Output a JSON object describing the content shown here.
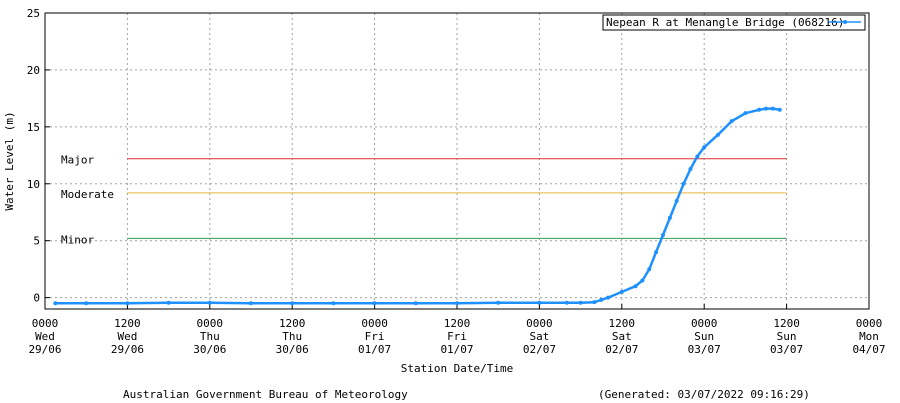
{
  "chart_data": {
    "type": "line",
    "title": "",
    "xlabel": "Station Date/Time",
    "ylabel": "Water Level (m)",
    "xlim": [
      "2022-06-29T00:00",
      "2022-07-04T00:00"
    ],
    "ylim": [
      -1,
      25
    ],
    "grid": true,
    "legend_position": "top-right",
    "y_ticks": [
      0,
      5,
      10,
      15,
      20,
      25
    ],
    "x_ticks": [
      {
        "time": "2022-06-29T00:00",
        "lines": [
          "0000",
          "Wed",
          "29/06"
        ]
      },
      {
        "time": "2022-06-29T12:00",
        "lines": [
          "1200",
          "Wed",
          "29/06"
        ]
      },
      {
        "time": "2022-06-30T00:00",
        "lines": [
          "0000",
          "Thu",
          "30/06"
        ]
      },
      {
        "time": "2022-06-30T12:00",
        "lines": [
          "1200",
          "Thu",
          "30/06"
        ]
      },
      {
        "time": "2022-07-01T00:00",
        "lines": [
          "0000",
          "Fri",
          "01/07"
        ]
      },
      {
        "time": "2022-07-01T12:00",
        "lines": [
          "1200",
          "Fri",
          "01/07"
        ]
      },
      {
        "time": "2022-07-02T00:00",
        "lines": [
          "0000",
          "Sat",
          "02/07"
        ]
      },
      {
        "time": "2022-07-02T12:00",
        "lines": [
          "1200",
          "Sat",
          "02/07"
        ]
      },
      {
        "time": "2022-07-03T00:00",
        "lines": [
          "0000",
          "Sun",
          "03/07"
        ]
      },
      {
        "time": "2022-07-03T12:00",
        "lines": [
          "1200",
          "Sun",
          "03/07"
        ]
      },
      {
        "time": "2022-07-04T00:00",
        "lines": [
          "0000",
          "Mon",
          "04/07"
        ]
      }
    ],
    "series": [
      {
        "name": "Nepean R at Menangle Bridge (068216)",
        "color": "#1e90ff",
        "points": [
          {
            "x": "2022-06-29T01:30",
            "y": -0.5
          },
          {
            "x": "2022-06-29T06:00",
            "y": -0.5
          },
          {
            "x": "2022-06-29T12:00",
            "y": -0.5
          },
          {
            "x": "2022-06-29T18:00",
            "y": -0.45
          },
          {
            "x": "2022-06-30T00:00",
            "y": -0.45
          },
          {
            "x": "2022-06-30T06:00",
            "y": -0.5
          },
          {
            "x": "2022-06-30T12:00",
            "y": -0.5
          },
          {
            "x": "2022-06-30T18:00",
            "y": -0.5
          },
          {
            "x": "2022-07-01T00:00",
            "y": -0.5
          },
          {
            "x": "2022-07-01T06:00",
            "y": -0.5
          },
          {
            "x": "2022-07-01T12:00",
            "y": -0.5
          },
          {
            "x": "2022-07-01T18:00",
            "y": -0.45
          },
          {
            "x": "2022-07-02T00:00",
            "y": -0.45
          },
          {
            "x": "2022-07-02T04:00",
            "y": -0.45
          },
          {
            "x": "2022-07-02T06:00",
            "y": -0.45
          },
          {
            "x": "2022-07-02T08:00",
            "y": -0.4
          },
          {
            "x": "2022-07-02T09:00",
            "y": -0.2
          },
          {
            "x": "2022-07-02T10:00",
            "y": 0.0
          },
          {
            "x": "2022-07-02T12:00",
            "y": 0.5
          },
          {
            "x": "2022-07-02T14:00",
            "y": 1.0
          },
          {
            "x": "2022-07-02T15:00",
            "y": 1.5
          },
          {
            "x": "2022-07-02T16:00",
            "y": 2.5
          },
          {
            "x": "2022-07-02T17:00",
            "y": 4.0
          },
          {
            "x": "2022-07-02T18:00",
            "y": 5.5
          },
          {
            "x": "2022-07-02T19:00",
            "y": 7.0
          },
          {
            "x": "2022-07-02T20:00",
            "y": 8.5
          },
          {
            "x": "2022-07-02T21:00",
            "y": 10.0
          },
          {
            "x": "2022-07-02T22:00",
            "y": 11.3
          },
          {
            "x": "2022-07-02T23:00",
            "y": 12.4
          },
          {
            "x": "2022-07-03T00:00",
            "y": 13.2
          },
          {
            "x": "2022-07-03T02:00",
            "y": 14.3
          },
          {
            "x": "2022-07-03T04:00",
            "y": 15.5
          },
          {
            "x": "2022-07-03T06:00",
            "y": 16.2
          },
          {
            "x": "2022-07-03T08:00",
            "y": 16.5
          },
          {
            "x": "2022-07-03T09:00",
            "y": 16.6
          },
          {
            "x": "2022-07-03T10:00",
            "y": 16.6
          },
          {
            "x": "2022-07-03T11:00",
            "y": 16.5
          }
        ]
      }
    ],
    "thresholds": [
      {
        "label": "Major",
        "value": 12.2,
        "color": "#e03030",
        "x_start": "2022-06-29T12:00",
        "x_end": "2022-07-03T12:00"
      },
      {
        "label": "Moderate",
        "value": 9.2,
        "color": "#e8b838",
        "x_start": "2022-06-29T12:00",
        "x_end": "2022-07-03T12:00"
      },
      {
        "label": "Minor",
        "value": 5.2,
        "color": "#3a9a50",
        "x_start": "2022-06-29T12:00",
        "x_end": "2022-07-03T12:00"
      }
    ]
  },
  "footer": {
    "source": "Australian Government Bureau of Meteorology",
    "generated": "(Generated: 03/07/2022 09:16:29)"
  }
}
